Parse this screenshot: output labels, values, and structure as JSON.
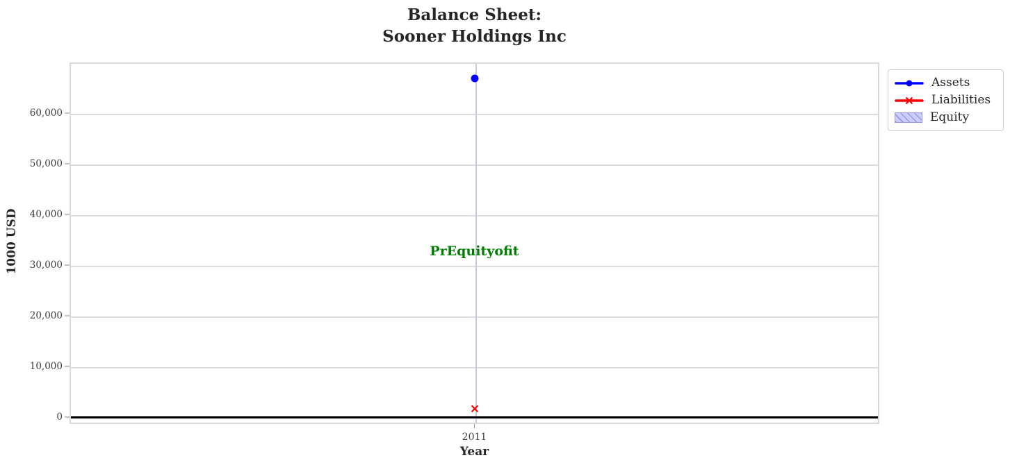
{
  "title": {
    "line1": "Balance Sheet:",
    "line2": "Sooner Holdings Inc"
  },
  "axes": {
    "xlabel": "Year",
    "ylabel": "1000 USD",
    "xtick_labels": [
      "2011"
    ],
    "ytick_labels": [
      "0",
      "10,000",
      "20,000",
      "30,000",
      "40,000",
      "50,000",
      "60,000"
    ]
  },
  "legend": {
    "items": [
      {
        "label": "Assets"
      },
      {
        "label": "Liabilities"
      },
      {
        "label": "Equity"
      }
    ]
  },
  "chart_data": {
    "type": "line",
    "title": "Balance Sheet: Sooner Holdings Inc",
    "xlabel": "Year",
    "ylabel": "1000 USD",
    "x": [
      2011
    ],
    "series": [
      {
        "name": "Assets",
        "values": [
          66850
        ],
        "color": "#0000ff",
        "marker": "circle"
      },
      {
        "name": "Liabilities",
        "values": [
          1650
        ],
        "color": "#ff0000",
        "marker": "x"
      },
      {
        "name": "Equity",
        "values": [],
        "fill_color": "#ccccff",
        "hatch_color": "#9898ec",
        "style": "hatched-area"
      }
    ],
    "annotation": {
      "text": "PrEquityofit",
      "x": 2011,
      "y": 32700,
      "color": "#007f00"
    },
    "yticks": [
      0,
      10000,
      20000,
      30000,
      40000,
      50000,
      60000
    ],
    "ylim": [
      -1400,
      70000
    ],
    "zero_line": {
      "y": 0,
      "color": "#000000"
    },
    "grid": true,
    "legend_position": "outside-upper-right"
  }
}
